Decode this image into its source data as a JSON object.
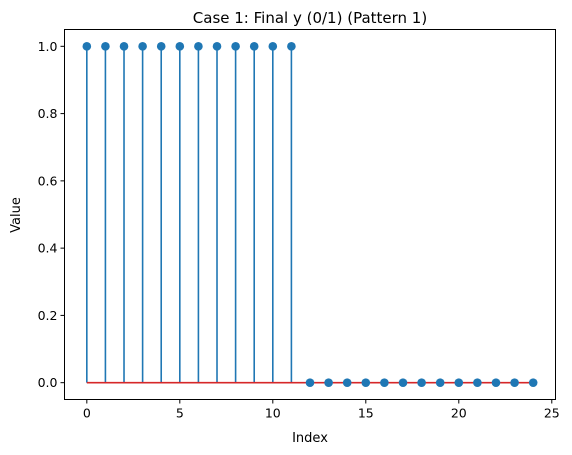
{
  "chart_data": {
    "type": "stem",
    "title": "Case 1: Final y (0/1) (Pattern 1)",
    "xlabel": "Index",
    "ylabel": "Value",
    "x": [
      0,
      1,
      2,
      3,
      4,
      5,
      6,
      7,
      8,
      9,
      10,
      11,
      12,
      13,
      14,
      15,
      16,
      17,
      18,
      19,
      20,
      21,
      22,
      23,
      24
    ],
    "y": [
      1,
      1,
      1,
      1,
      1,
      1,
      1,
      1,
      1,
      1,
      1,
      1,
      0,
      0,
      0,
      0,
      0,
      0,
      0,
      0,
      0,
      0,
      0,
      0,
      0
    ],
    "xlim": [
      -1.2,
      25.2
    ],
    "ylim": [
      -0.05,
      1.05
    ],
    "xticks": [
      0,
      5,
      10,
      15,
      20,
      25
    ],
    "xtick_labels": [
      "0",
      "5",
      "10",
      "15",
      "20",
      "25"
    ],
    "yticks": [
      0.0,
      0.2,
      0.4,
      0.6,
      0.8,
      1.0
    ],
    "ytick_labels": [
      "0.0",
      "0.2",
      "0.4",
      "0.6",
      "0.8",
      "1.0"
    ],
    "grid": false,
    "colors": {
      "stem": "#1f77b4",
      "marker": "#1f77b4",
      "baseline": "#d62728",
      "axes": "#000000"
    }
  }
}
